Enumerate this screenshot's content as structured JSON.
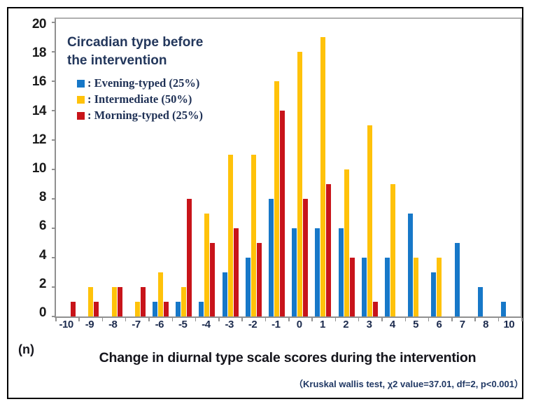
{
  "legend": {
    "title_line1": "Circadian type before",
    "title_line2": "the intervention",
    "items": [
      {
        "label": ": Evening-typed (25%)",
        "color": "#1778C8"
      },
      {
        "label": ": Intermediate (50%)",
        "color": "#FFC20A"
      },
      {
        "label": ": Morning-typed (25%)",
        "color": "#C8141A"
      }
    ]
  },
  "footer": {
    "n_label": "(n)",
    "title": "Change in diurnal type scale scores during the intervention",
    "note": "（Kruskal wallis test, χ2 value=37.01, df=2, p<0.001）"
  },
  "chart_data": {
    "type": "bar",
    "title": "Change in diurnal type scale scores during the intervention",
    "xlabel": "Change in diurnal type scale scores during the intervention",
    "ylabel": "(n)",
    "ylim": [
      0,
      20
    ],
    "y_ticks": [
      0,
      2,
      4,
      6,
      8,
      10,
      12,
      14,
      16,
      18,
      20
    ],
    "grid": false,
    "legend_position": "inside top-left",
    "legend_title": "Circadian type before the intervention",
    "stat_note": "Kruskal wallis test, χ2 value=37.01, df=2, p<0.001",
    "categories": [
      "-10",
      "-9",
      "-8",
      "-7",
      "-6",
      "-5",
      "-4",
      "-3",
      "-2",
      "-1",
      "0",
      "1",
      "2",
      "3",
      "4",
      "5",
      "6",
      "7",
      "8",
      "10"
    ],
    "series": [
      {
        "name": "Evening-typed (25%)",
        "color": "#1778C8",
        "values": [
          0,
          0,
          0,
          0,
          1,
          1,
          1,
          3,
          4,
          8,
          6,
          6,
          6,
          4,
          4,
          7,
          3,
          5,
          2,
          1
        ]
      },
      {
        "name": "Intermediate (50%)",
        "color": "#FFC20A",
        "values": [
          0,
          2,
          2,
          1,
          3,
          2,
          7,
          11,
          11,
          16,
          18,
          19,
          10,
          13,
          9,
          4,
          4,
          0,
          0,
          0
        ]
      },
      {
        "name": "Morning-typed (25%)",
        "color": "#C8141A",
        "values": [
          1,
          1,
          2,
          2,
          1,
          8,
          5,
          6,
          5,
          14,
          8,
          9,
          4,
          1,
          0,
          0,
          0,
          0,
          0,
          0
        ]
      }
    ]
  }
}
